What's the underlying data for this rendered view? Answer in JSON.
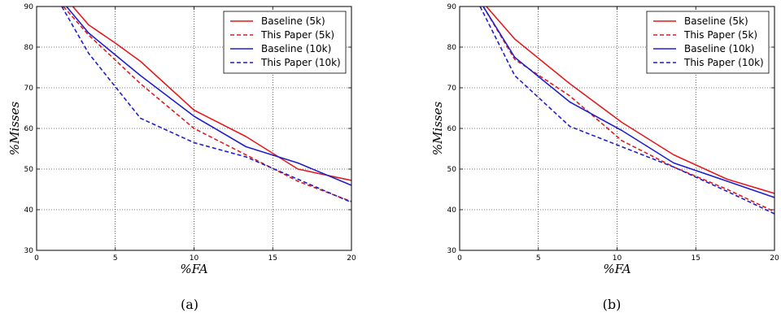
{
  "chart_data": [
    {
      "type": "line",
      "caption": "(a)",
      "xlabel": "%FA",
      "ylabel": "%Misses",
      "xlim": [
        0,
        20
      ],
      "ylim": [
        30,
        90
      ],
      "xticks": [
        0,
        5,
        10,
        15,
        20
      ],
      "yticks": [
        30,
        40,
        50,
        60,
        70,
        80,
        90
      ],
      "grid": true,
      "legend_position": "top-right",
      "series": [
        {
          "name": "Baseline (5k)",
          "color": "#e41a1c",
          "dash": "solid",
          "x": [
            2.3,
            3.3,
            5,
            6.6,
            10,
            13.3,
            16.6,
            20
          ],
          "y": [
            90,
            85.5,
            81,
            76.5,
            64.5,
            58,
            50,
            47.2
          ]
        },
        {
          "name": "This Paper (5k)",
          "color": "#e41a1c",
          "dash": "dashed",
          "x": [
            1.7,
            3.3,
            6.6,
            10,
            13.3,
            16.6,
            20
          ],
          "y": [
            90,
            83,
            71,
            60,
            53.5,
            47,
            42
          ]
        },
        {
          "name": "Baseline (10k)",
          "color": "#1f1fcc",
          "dash": "solid",
          "x": [
            1.9,
            3.3,
            6.6,
            10,
            13.3,
            16.6,
            20
          ],
          "y": [
            90,
            83.5,
            73,
            63,
            55.5,
            51.5,
            46
          ]
        },
        {
          "name": "This Paper (10k)",
          "color": "#1f1fcc",
          "dash": "dashed",
          "x": [
            1.6,
            3.3,
            6.6,
            10,
            13.3,
            16.6,
            20
          ],
          "y": [
            90,
            78.5,
            62.5,
            56.5,
            53,
            47.5,
            41.8
          ]
        }
      ]
    },
    {
      "type": "line",
      "caption": "(b)",
      "xlabel": "%FA",
      "ylabel": "%Misses",
      "xlim": [
        0,
        20
      ],
      "ylim": [
        30,
        90
      ],
      "xticks": [
        0,
        5,
        10,
        15,
        20
      ],
      "yticks": [
        30,
        40,
        50,
        60,
        70,
        80,
        90
      ],
      "grid": true,
      "legend_position": "top-right",
      "series": [
        {
          "name": "Baseline (5k)",
          "color": "#e41a1c",
          "dash": "solid",
          "x": [
            1.7,
            3.5,
            7,
            10.3,
            13.6,
            17,
            20
          ],
          "y": [
            90,
            82,
            71,
            61.5,
            53.5,
            47.5,
            44
          ]
        },
        {
          "name": "This Paper (5k)",
          "color": "#e41a1c",
          "dash": "dashed",
          "x": [
            1.5,
            3.5,
            7,
            10.3,
            13.6,
            17,
            20
          ],
          "y": [
            90,
            77,
            68,
            57,
            50.5,
            45,
            39.5
          ]
        },
        {
          "name": "Baseline (10k)",
          "color": "#1f1fcc",
          "dash": "solid",
          "x": [
            1.5,
            3.5,
            7,
            10.3,
            13.6,
            17,
            20
          ],
          "y": [
            90,
            77.5,
            66.5,
            59.5,
            51.5,
            47,
            43
          ]
        },
        {
          "name": "This Paper (10k)",
          "color": "#1f1fcc",
          "dash": "dashed",
          "x": [
            1.3,
            3.5,
            7,
            10.3,
            13.6,
            17,
            20
          ],
          "y": [
            90,
            73,
            60.5,
            55.5,
            50.5,
            44.5,
            39
          ]
        }
      ]
    }
  ]
}
